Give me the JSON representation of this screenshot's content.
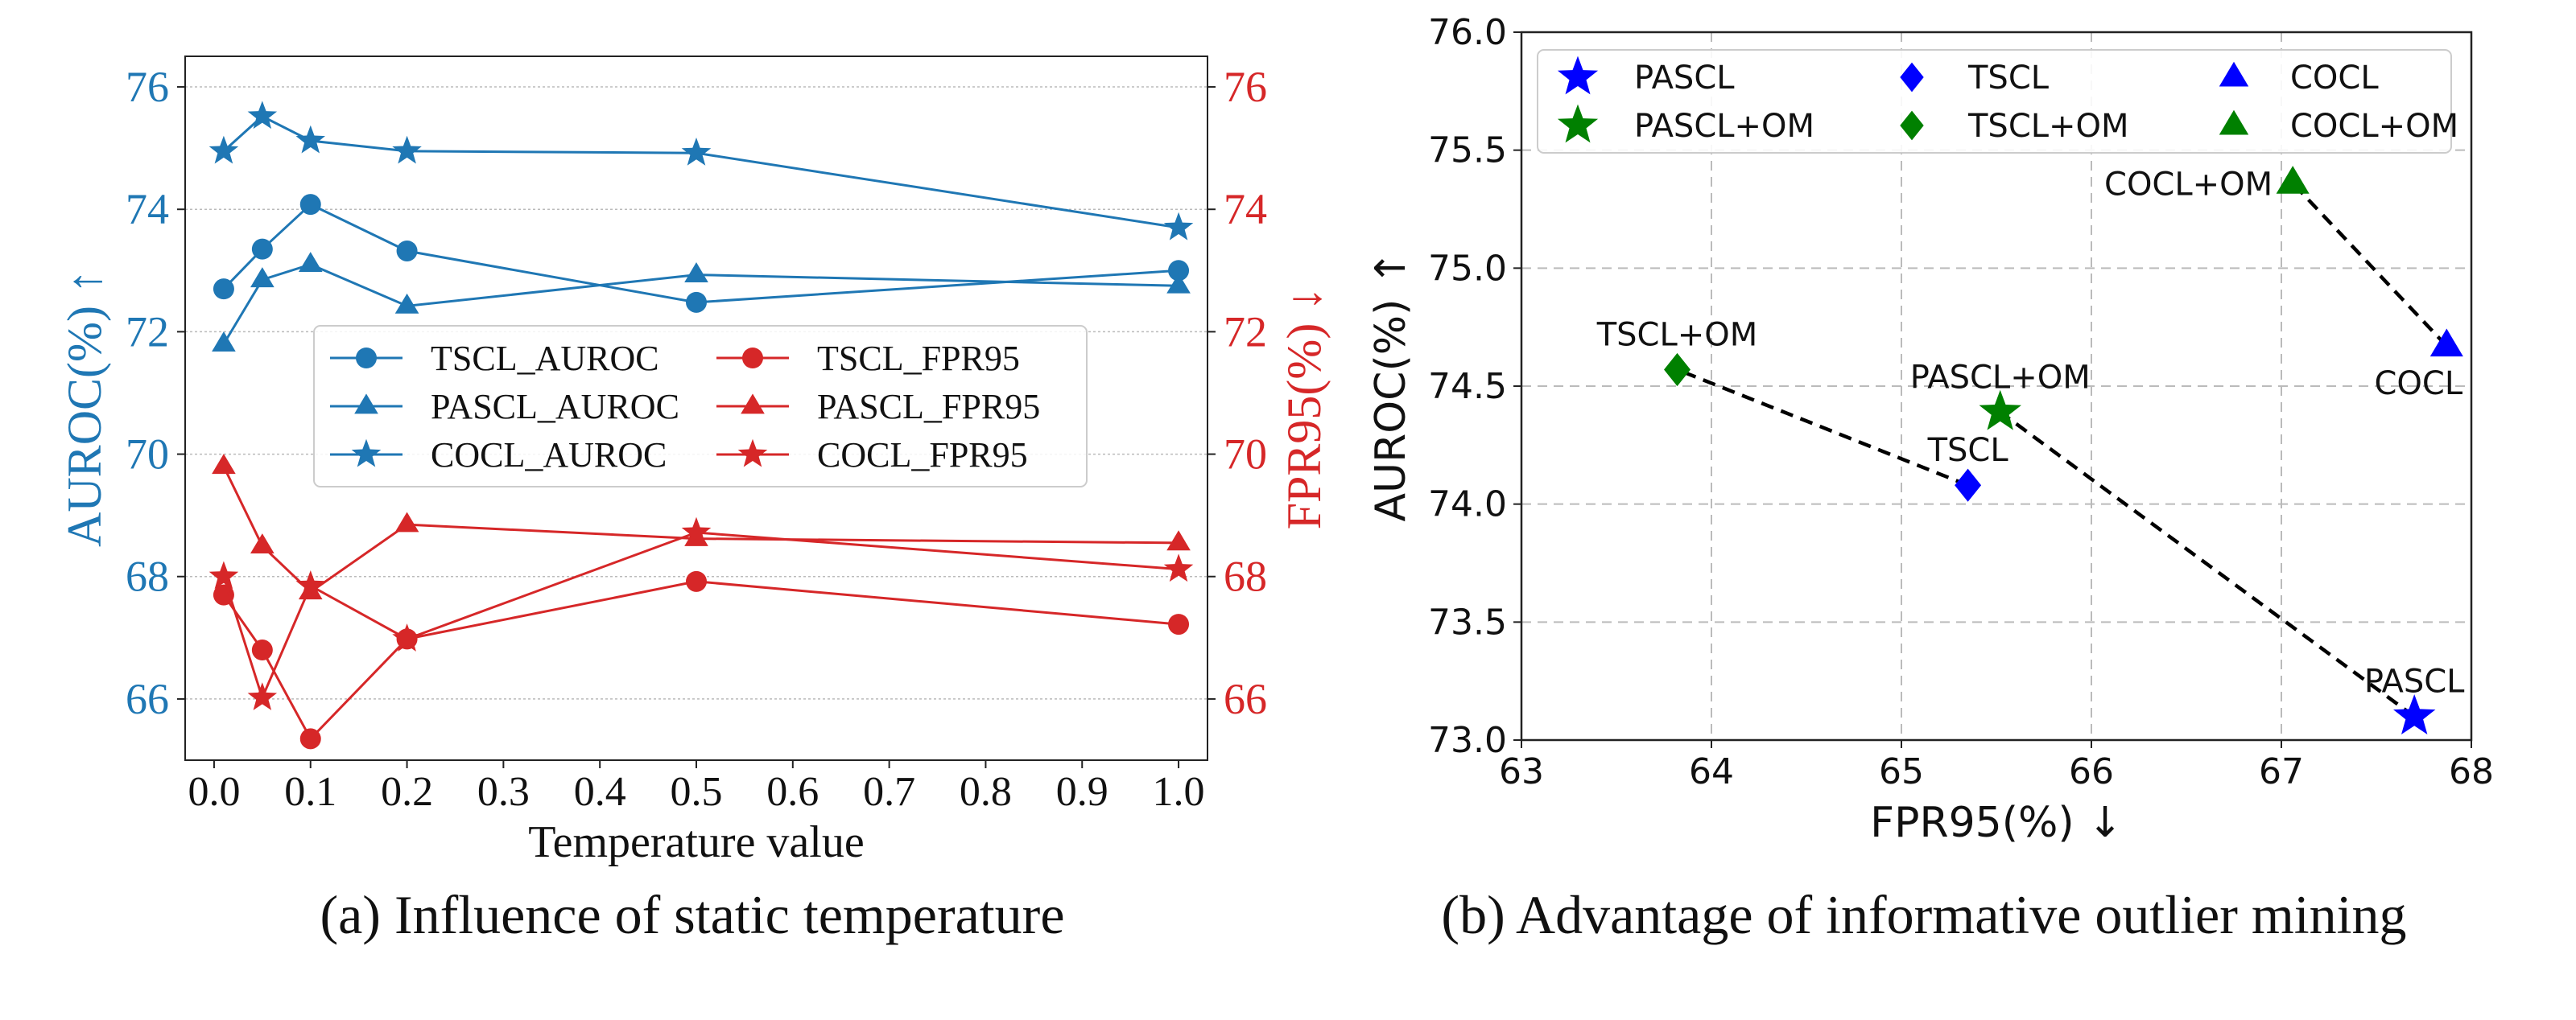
{
  "colors": {
    "blue": "#1f77b4",
    "red": "#d62728",
    "marker_blue": "#0000ff",
    "marker_green": "#008000",
    "grid": "#bbbbbb",
    "text": "#111111"
  },
  "captions": {
    "a": "(a)  Influence of static temperature",
    "b": "(b)  Advantage of informative outlier mining"
  },
  "chart_data": [
    {
      "type": "line",
      "title": "",
      "xlabel": "Temperature value",
      "ylabel_left": "AUROC(%) ↑",
      "ylabel_right": "FPR95(%) ↓",
      "xlim": [
        -0.03,
        1.03
      ],
      "ylim_left": [
        65,
        76.5
      ],
      "ylim_right": [
        65,
        76.5
      ],
      "x_ticks": [
        0.0,
        0.1,
        0.2,
        0.3,
        0.4,
        0.5,
        0.6,
        0.7,
        0.8,
        0.9,
        1.0
      ],
      "x_tick_labels": [
        "0.0",
        "0.1",
        "0.2",
        "0.3",
        "0.4",
        "0.5",
        "0.6",
        "0.7",
        "0.8",
        "0.9",
        "1.0"
      ],
      "y_ticks_left": [
        66,
        68,
        70,
        72,
        74,
        76
      ],
      "y_tick_labels_left": [
        "66",
        "68",
        "70",
        "72",
        "74",
        "76"
      ],
      "y_ticks_right": [
        66,
        68,
        70,
        72,
        74,
        76
      ],
      "y_tick_labels_right": [
        "66",
        "68",
        "70",
        "72",
        "74",
        "76"
      ],
      "grid": "horizontal",
      "legend_placement": "center-left",
      "x": [
        0.01,
        0.05,
        0.1,
        0.2,
        0.5,
        1.0
      ],
      "series": [
        {
          "name": "TSCL_AUROC",
          "axis": "left",
          "color": "#1f77b4",
          "marker": "circle",
          "values": [
            72.7,
            73.35,
            74.08,
            73.32,
            72.48,
            73.0
          ]
        },
        {
          "name": "PASCL_AUROC",
          "axis": "left",
          "color": "#1f77b4",
          "marker": "triangle",
          "values": [
            71.8,
            72.85,
            73.1,
            72.42,
            72.93,
            72.75
          ]
        },
        {
          "name": "COCL_AUROC",
          "axis": "left",
          "color": "#1f77b4",
          "marker": "star",
          "values": [
            74.95,
            75.52,
            75.12,
            74.95,
            74.92,
            73.7
          ]
        },
        {
          "name": "TSCL_FPR95",
          "axis": "right",
          "color": "#d62728",
          "marker": "circle",
          "values": [
            67.7,
            66.8,
            65.35,
            66.98,
            67.92,
            67.22
          ]
        },
        {
          "name": "PASCL_FPR95",
          "axis": "right",
          "color": "#d62728",
          "marker": "triangle",
          "values": [
            69.8,
            68.5,
            67.75,
            68.85,
            68.62,
            68.55
          ]
        },
        {
          "name": "COCL_FPR95",
          "axis": "right",
          "color": "#d62728",
          "marker": "star",
          "values": [
            68.0,
            66.02,
            67.85,
            66.98,
            68.72,
            68.12
          ]
        }
      ]
    },
    {
      "type": "scatter",
      "title": "",
      "xlabel": "FPR95(%) ↓",
      "ylabel": "AUROC(%) ↑",
      "xlim": [
        63,
        68
      ],
      "ylim": [
        73.0,
        76.0
      ],
      "x_ticks": [
        63,
        64,
        65,
        66,
        67,
        68
      ],
      "x_tick_labels": [
        "63",
        "64",
        "65",
        "66",
        "67",
        "68"
      ],
      "y_ticks": [
        73.0,
        73.5,
        74.0,
        74.5,
        75.0,
        75.5,
        76.0
      ],
      "y_tick_labels": [
        "73.0",
        "73.5",
        "74.0",
        "74.5",
        "75.0",
        "75.5",
        "76.0"
      ],
      "grid": "both-dashed",
      "legend_placement": "top",
      "legend": [
        {
          "label": "PASCL",
          "marker": "star",
          "color": "#0000ff"
        },
        {
          "label": "TSCL",
          "marker": "diamond",
          "color": "#0000ff"
        },
        {
          "label": "COCL",
          "marker": "triangle",
          "color": "#0000ff"
        },
        {
          "label": "PASCL+OM",
          "marker": "star",
          "color": "#008000"
        },
        {
          "label": "TSCL+OM",
          "marker": "diamond",
          "color": "#008000"
        },
        {
          "label": "COCL+OM",
          "marker": "triangle",
          "color": "#008000"
        }
      ],
      "points": [
        {
          "label": "PASCL",
          "x": 67.7,
          "y": 73.1,
          "marker": "star",
          "color": "#0000ff",
          "label_pos": "above"
        },
        {
          "label": "PASCL+OM",
          "x": 65.52,
          "y": 74.39,
          "marker": "star",
          "color": "#008000",
          "label_pos": "above"
        },
        {
          "label": "TSCL",
          "x": 65.35,
          "y": 74.08,
          "marker": "diamond",
          "color": "#0000ff",
          "label_pos": "above"
        },
        {
          "label": "TSCL+OM",
          "x": 63.82,
          "y": 74.57,
          "marker": "diamond",
          "color": "#008000",
          "label_pos": "above"
        },
        {
          "label": "COCL",
          "x": 67.87,
          "y": 74.67,
          "marker": "triangle",
          "color": "#0000ff",
          "label_pos": "below"
        },
        {
          "label": "COCL+OM",
          "x": 67.06,
          "y": 75.36,
          "marker": "triangle",
          "color": "#008000",
          "label_pos": "left"
        }
      ],
      "connections": [
        [
          "PASCL",
          "PASCL+OM"
        ],
        [
          "TSCL",
          "TSCL+OM"
        ],
        [
          "COCL",
          "COCL+OM"
        ]
      ]
    }
  ]
}
